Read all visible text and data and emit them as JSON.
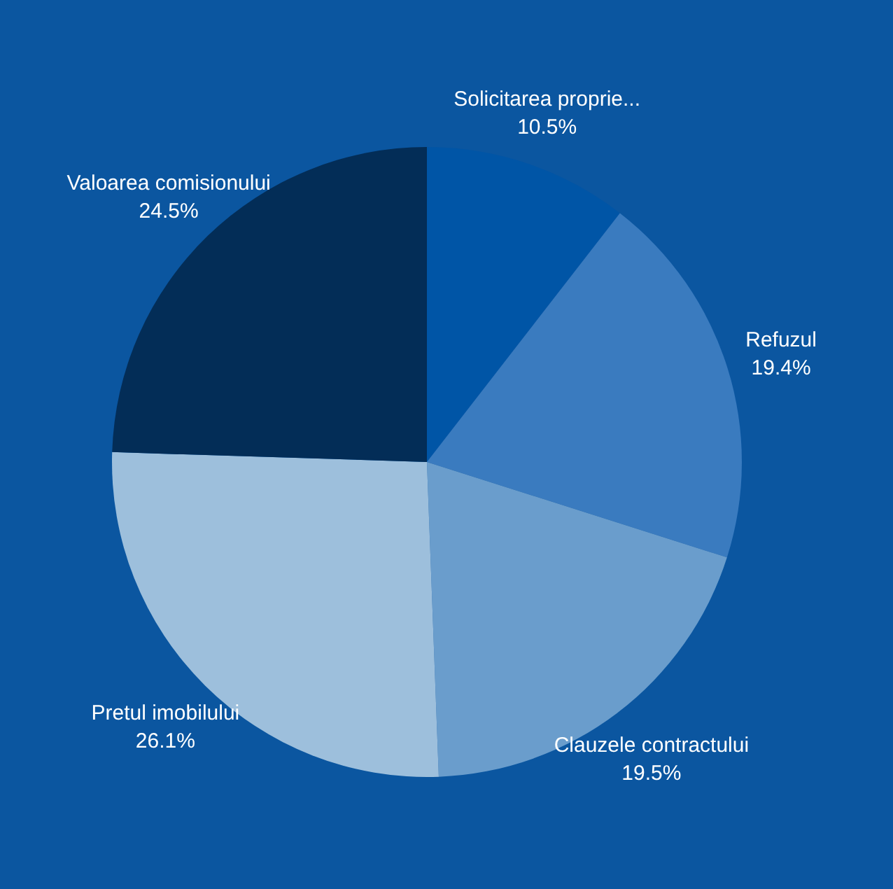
{
  "chart_data": {
    "type": "pie",
    "categories": [
      "Solicitarea proprie...",
      "Refuzul",
      "Clauzele contractului",
      "Pretul imobilului",
      "Valoarea comisionului"
    ],
    "values": [
      10.5,
      19.4,
      19.5,
      26.1,
      24.5
    ],
    "value_labels": [
      "10.5%",
      "19.4%",
      "19.5%",
      "26.1%",
      "24.5%"
    ],
    "colors": [
      "#0055a6",
      "#3a7bbf",
      "#6a9dcc",
      "#9dbfdc",
      "#032d57"
    ],
    "legend": false
  }
}
